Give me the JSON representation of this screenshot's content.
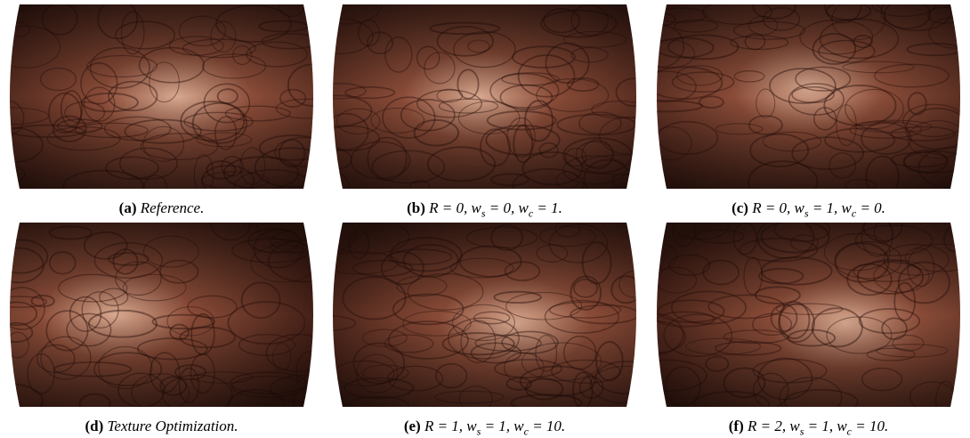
{
  "figure": {
    "panels": [
      {
        "label": "(a)",
        "caption": [
          {
            "text": "Reference."
          }
        ]
      },
      {
        "label": "(b)",
        "caption": [
          {
            "text": "R = 0, w"
          },
          {
            "sub": "s"
          },
          {
            "text": " = 0, w"
          },
          {
            "sub": "c"
          },
          {
            "text": " = 1."
          }
        ]
      },
      {
        "label": "(c)",
        "caption": [
          {
            "text": "R = 0, w"
          },
          {
            "sub": "s"
          },
          {
            "text": " = 1, w"
          },
          {
            "sub": "c"
          },
          {
            "text": " = 0."
          }
        ]
      },
      {
        "label": "(d)",
        "caption": [
          {
            "text": "Texture Optimization."
          }
        ]
      },
      {
        "label": "(e)",
        "caption": [
          {
            "text": "R = 1, w"
          },
          {
            "sub": "s"
          },
          {
            "text": " = 1, w"
          },
          {
            "sub": "c"
          },
          {
            "text": " = 10."
          }
        ]
      },
      {
        "label": "(f)",
        "caption": [
          {
            "text": "R = 2, w"
          },
          {
            "sub": "s"
          },
          {
            "text": " = 1, w"
          },
          {
            "sub": "c"
          },
          {
            "text": " = 10."
          }
        ]
      }
    ]
  }
}
